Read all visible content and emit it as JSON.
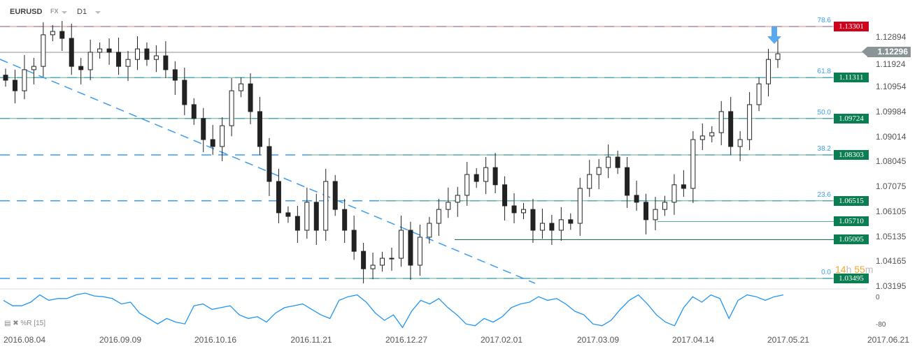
{
  "header": {
    "symbol": "EURUSD",
    "market": "FX",
    "timeframe": "D1"
  },
  "price_axis": [
    "1.12894",
    "1.11924",
    "1.10954",
    "1.09984",
    "1.09014",
    "1.08045",
    "1.07075",
    "1.06105",
    "1.05135",
    "1.04165",
    "1.03195"
  ],
  "current_price": "1.12296",
  "levels": [
    {
      "price": "1.13301",
      "color": "#d0021b",
      "fib": "78.6"
    },
    {
      "price": "1.11311",
      "color": "#0b7d52",
      "fib": "61.8"
    },
    {
      "price": "1.09724",
      "color": "#0b7d52",
      "fib": "50.0"
    },
    {
      "price": "1.08303",
      "color": "#0b7d52",
      "fib": "38.2"
    },
    {
      "price": "1.06515",
      "color": "#0b7d52",
      "fib": "23.6"
    },
    {
      "price": "1.05710",
      "color": "#0b7d52",
      "fib": ""
    },
    {
      "price": "1.05005",
      "color": "#0b7d52",
      "fib": ""
    },
    {
      "price": "1.03495",
      "color": "#0b7d52",
      "fib": "0.0"
    }
  ],
  "timer": {
    "hours": "14",
    "h": "h",
    "minutes": "55",
    "m": "m"
  },
  "oscillator": {
    "label": "%R [15]",
    "top": "0",
    "bottom": "-80",
    "values": [
      -20,
      -35,
      -35,
      -25,
      -5,
      -20,
      -15,
      -15,
      -5,
      0,
      -8,
      -10,
      -15,
      -30,
      -25,
      -55,
      -70,
      -85,
      -70,
      -80,
      -85,
      -35,
      -30,
      -45,
      -40,
      -35,
      -60,
      -70,
      -65,
      -80,
      -55,
      -40,
      -35,
      -30,
      -45,
      -60,
      -70,
      -20,
      -10,
      -5,
      -25,
      -55,
      -75,
      -60,
      -95,
      -50,
      -20,
      -30,
      -15,
      -40,
      -60,
      -85,
      -90,
      -70,
      -80,
      -65,
      -40,
      -30,
      -25,
      -10,
      -20,
      -15,
      -30,
      -50,
      -60,
      -85,
      -90,
      -75,
      -45,
      -20,
      -5,
      -30,
      -60,
      -80,
      -90,
      -40,
      -10,
      -25,
      -5,
      -15,
      -70,
      -20,
      -5,
      -10,
      -20,
      -10,
      -5
    ]
  },
  "dates": [
    "2016.08.04",
    "2016.09.09",
    "2016.10.16",
    "2016.11.21",
    "2016.12.27",
    "2017.02.01",
    "2017.03.09",
    "2017.04.14",
    "2017.05.21",
    "2017.06.21"
  ],
  "chart_data": {
    "type": "candlestick",
    "ylim": [
      1.03195,
      1.12894
    ],
    "closes": [
      1.1121,
      1.108,
      1.1162,
      1.1175,
      1.1298,
      1.1311,
      1.1284,
      1.1175,
      1.1162,
      1.123,
      1.1243,
      1.123,
      1.1175,
      1.1202,
      1.1243,
      1.1202,
      1.1216,
      1.1162,
      1.1121,
      1.1026,
      1.0972,
      1.089,
      1.0863,
      1.0944,
      1.108,
      1.1107,
      1.0999,
      1.0863,
      1.0727,
      1.0605,
      1.0591,
      1.0537,
      1.0646,
      1.0537,
      1.0727,
      1.0618,
      1.0537,
      1.0455,
      1.0387,
      1.0401,
      1.0428,
      1.0428,
      1.0537,
      1.0401,
      1.051,
      1.0564,
      1.0618,
      1.0646,
      1.0673,
      1.0754,
      1.0727,
      1.0781,
      1.0714,
      1.0632,
      1.0605,
      1.0618,
      1.0537,
      1.0564,
      1.0537,
      1.0578,
      1.0564,
      1.07,
      1.0754,
      1.0781,
      1.0822,
      1.0781,
      1.0673,
      1.0646,
      1.0578,
      1.0618,
      1.0646,
      1.0714,
      1.07,
      1.089,
      1.0904,
      1.0917,
      1.0999,
      1.0863,
      1.089,
      1.1026,
      1.1107,
      1.1202,
      1.1224
    ]
  }
}
